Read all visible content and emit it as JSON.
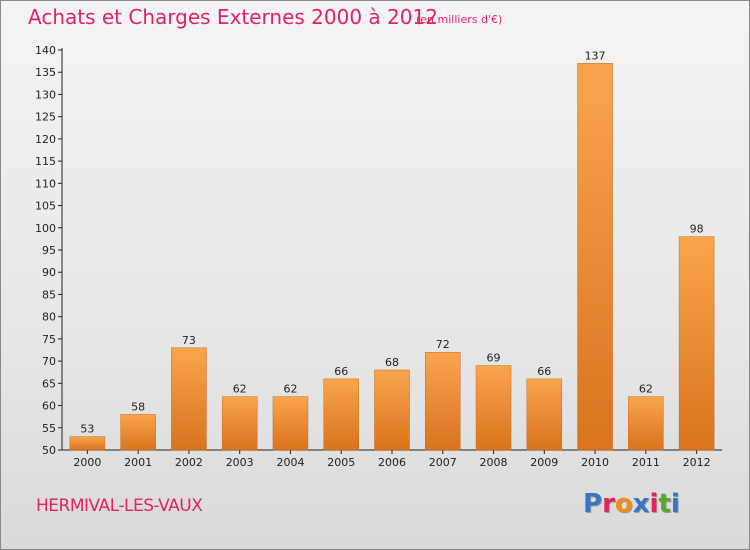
{
  "header": {
    "title": "Achats et Charges Externes 2000 à 2012",
    "unit": "(en milliers d'€)"
  },
  "footer": {
    "commune": "HERMIVAL-LES-VAUX",
    "logo": {
      "text": "Proxiti",
      "colors": [
        "#3a74c4",
        "#e0245e",
        "#f08c1a",
        "#3a74c4",
        "#e0245e",
        "#5aa52f",
        "#3a74c4"
      ]
    }
  },
  "chart_data": {
    "type": "bar",
    "title": "Achats et Charges Externes 2000 à 2012",
    "subtitle": "(en milliers d'€)",
    "xlabel": "",
    "ylabel": "",
    "categories": [
      "2000",
      "2001",
      "2002",
      "2003",
      "2004",
      "2005",
      "2006",
      "2007",
      "2008",
      "2009",
      "2010",
      "2011",
      "2012"
    ],
    "values": [
      53,
      58,
      73,
      62,
      62,
      66,
      68,
      72,
      69,
      66,
      137,
      62,
      98
    ],
    "ylim": [
      50,
      140
    ],
    "yticks": [
      50,
      55,
      60,
      65,
      70,
      75,
      80,
      85,
      90,
      95,
      100,
      105,
      110,
      115,
      120,
      125,
      130,
      135,
      140
    ],
    "grid": false,
    "legend": "none",
    "bar_color": "#f59a3c"
  }
}
